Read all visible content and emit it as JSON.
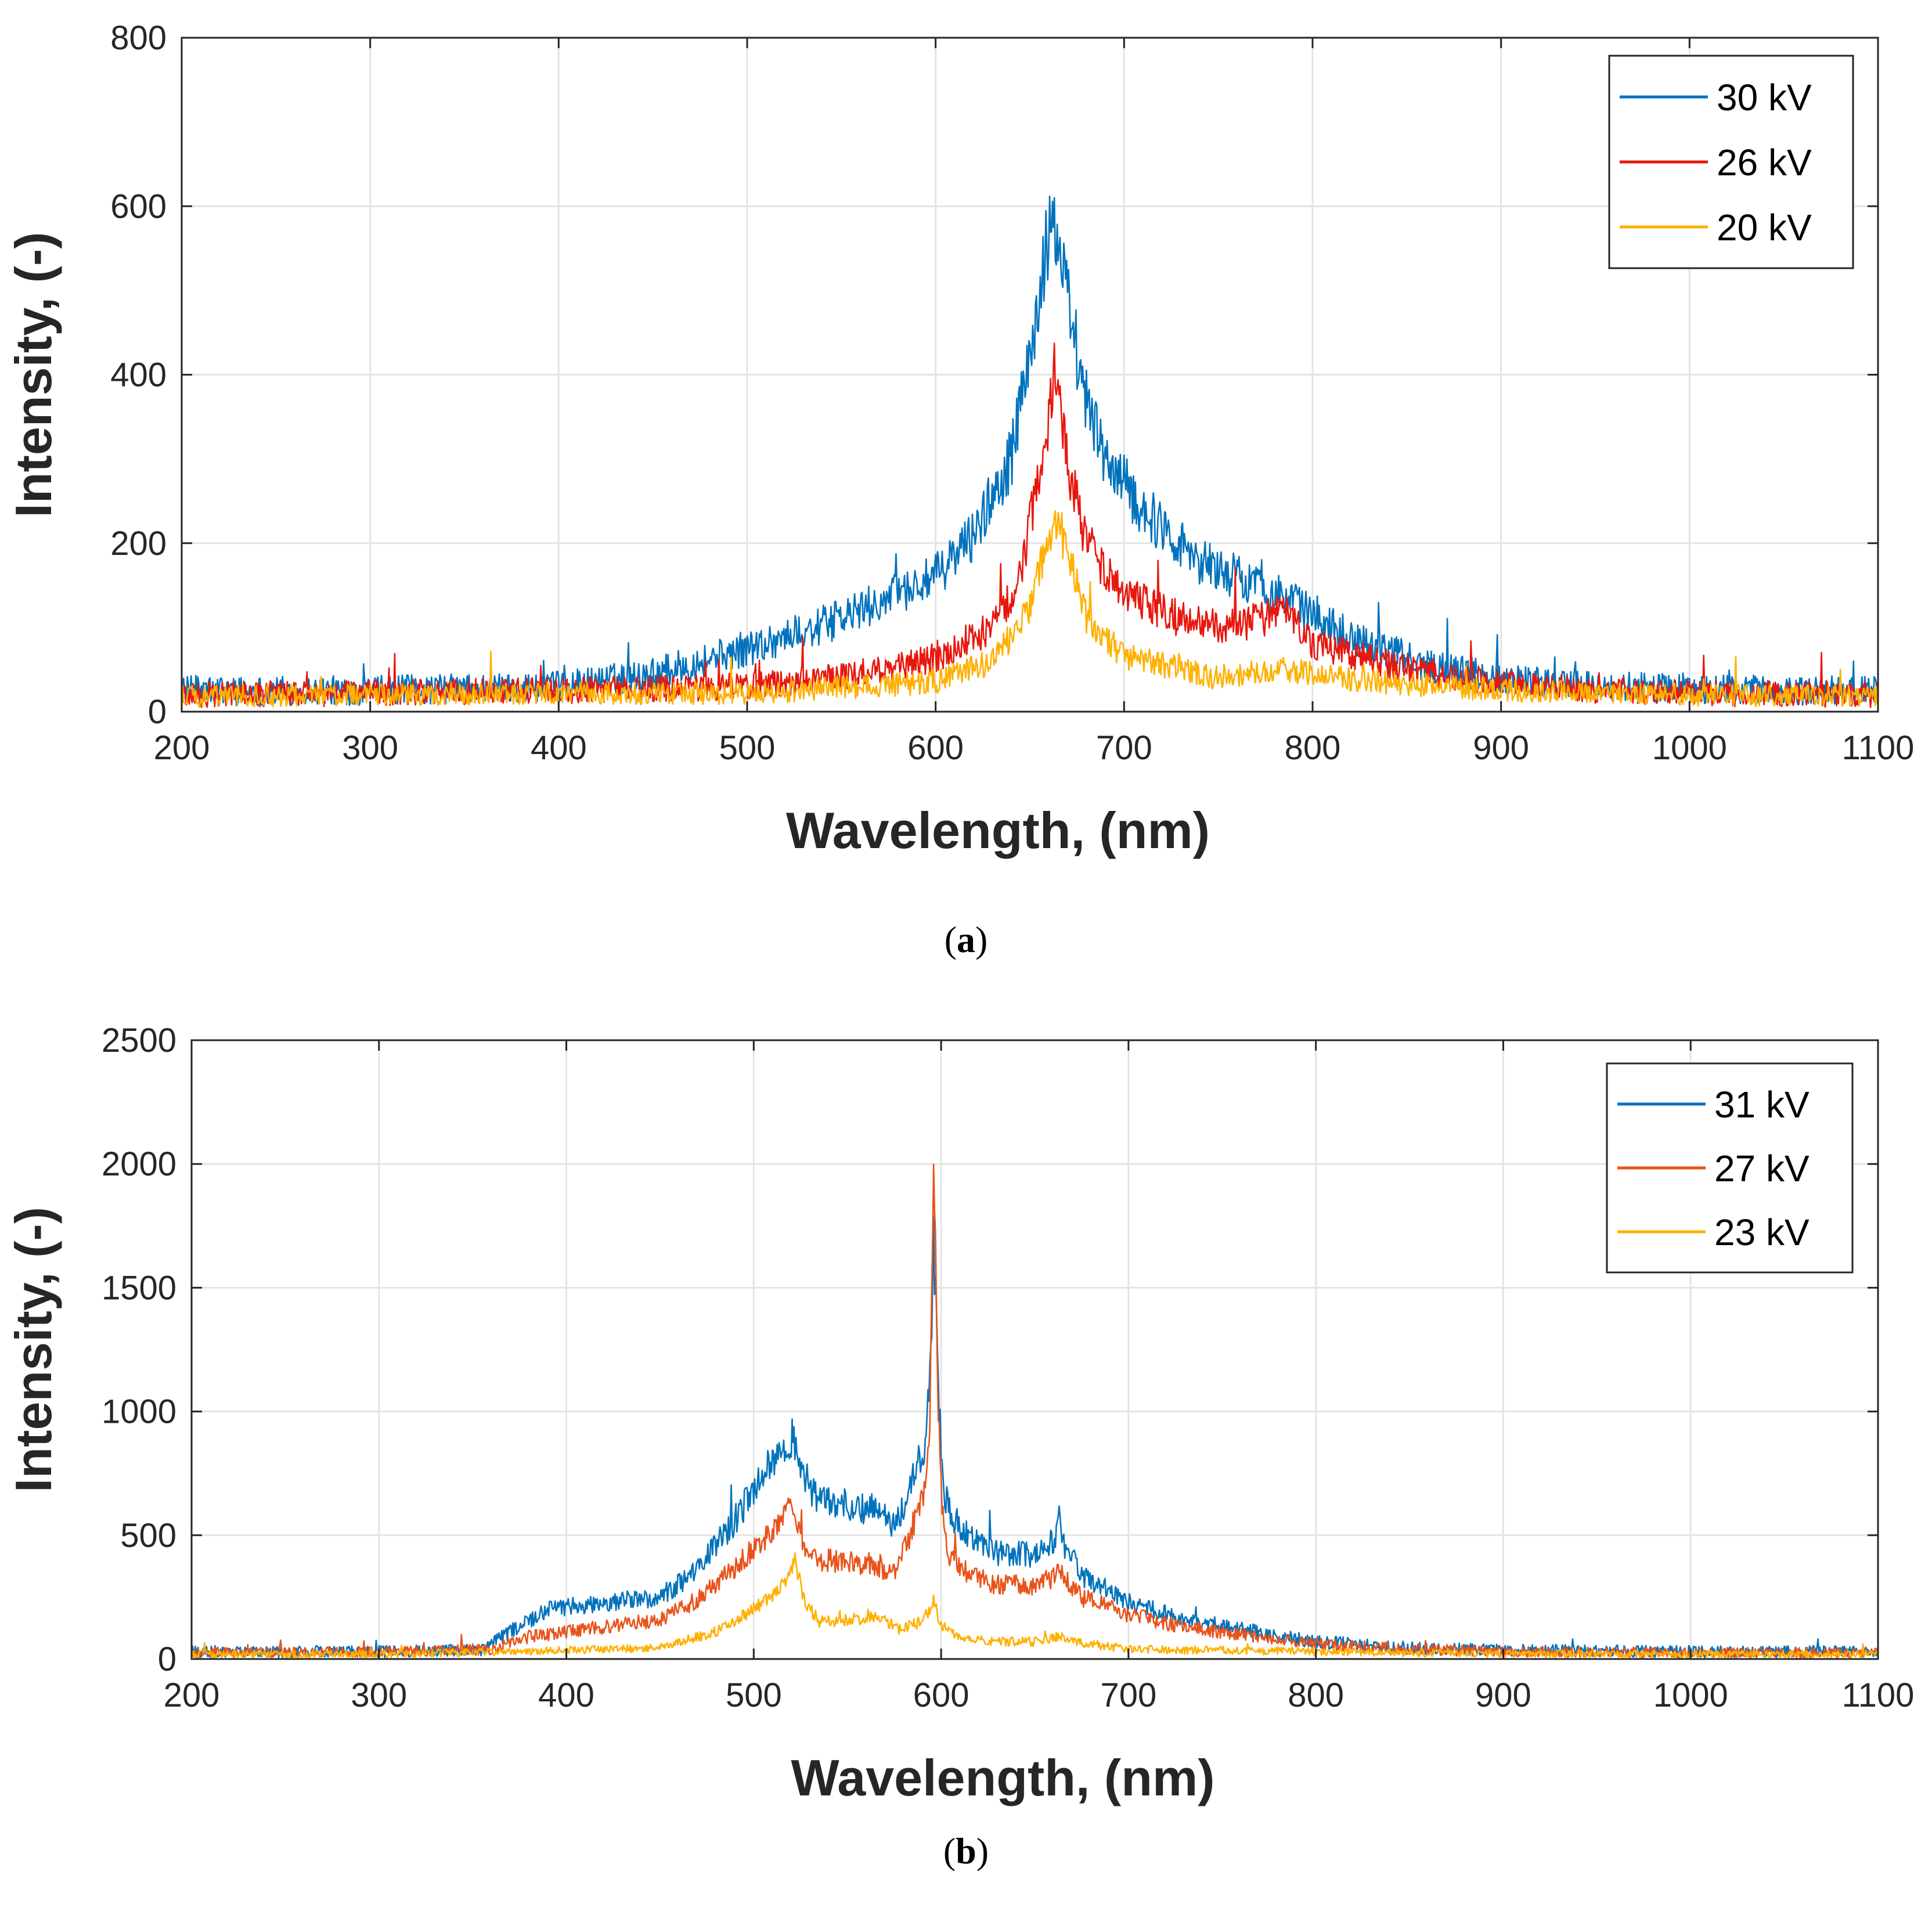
{
  "chart_data": [
    {
      "type": "line",
      "caption_letter": "a",
      "xlabel": "Wavelength, (nm)",
      "ylabel": "Intensity, (-)",
      "xlim": [
        200,
        1100
      ],
      "ylim": [
        0,
        800
      ],
      "xticks": [
        200,
        300,
        400,
        500,
        600,
        700,
        800,
        900,
        1000,
        1100
      ],
      "xtick_labels": [
        "200",
        "300",
        "400",
        "500",
        "600",
        "700",
        "800",
        "900",
        "1000",
        "1100"
      ],
      "yticks": [
        0,
        200,
        400,
        600,
        800
      ],
      "ytick_labels": [
        "0",
        "200",
        "400",
        "600",
        "800"
      ],
      "grid": true,
      "legend_position": "top-right",
      "series": [
        {
          "name": "30 kV",
          "color": "#0072BD",
          "noise": 16,
          "x": [
            200,
            300,
            400,
            450,
            500,
            550,
            600,
            620,
            640,
            650,
            658,
            663,
            668,
            675,
            690,
            710,
            740,
            770,
            790,
            820,
            860,
            900,
            950,
            1000,
            1050,
            1100
          ],
          "y": [
            25,
            25,
            30,
            45,
            75,
            110,
            160,
            210,
            300,
            420,
            540,
            580,
            520,
            400,
            300,
            240,
            180,
            150,
            130,
            90,
            55,
            40,
            30,
            28,
            25,
            25
          ]
        },
        {
          "name": "26 kV",
          "color": "#E8170E",
          "noise": 14,
          "x": [
            200,
            300,
            400,
            500,
            560,
            600,
            630,
            645,
            655,
            663,
            670,
            680,
            700,
            730,
            760,
            785,
            800,
            850,
            900,
            950,
            1000,
            1100
          ],
          "y": [
            20,
            22,
            25,
            30,
            45,
            65,
            100,
            160,
            280,
            400,
            300,
            200,
            140,
            110,
            100,
            120,
            80,
            50,
            35,
            25,
            22,
            20
          ]
        },
        {
          "name": "20 kV",
          "color": "#FFB000",
          "noise": 12,
          "x": [
            200,
            300,
            400,
            500,
            600,
            630,
            650,
            658,
            663,
            670,
            680,
            700,
            750,
            785,
            820,
            900,
            1000,
            1100
          ],
          "y": [
            18,
            20,
            22,
            22,
            35,
            60,
            120,
            190,
            235,
            190,
            110,
            65,
            40,
            50,
            38,
            25,
            20,
            18
          ]
        }
      ]
    },
    {
      "type": "line",
      "caption_letter": "b",
      "xlabel": "Wavelength, (nm)",
      "ylabel": "Intensity, (-)",
      "xlim": [
        200,
        1100
      ],
      "ylim": [
        0,
        2500
      ],
      "xticks": [
        200,
        300,
        400,
        500,
        600,
        700,
        800,
        900,
        1000,
        1100
      ],
      "xtick_labels": [
        "200",
        "300",
        "400",
        "500",
        "600",
        "700",
        "800",
        "900",
        "1000",
        "1100"
      ],
      "yticks": [
        0,
        500,
        1000,
        1500,
        2000,
        2500
      ],
      "ytick_labels": [
        "0",
        "500",
        "1000",
        "1500",
        "2000",
        "2500"
      ],
      "grid": true,
      "legend_position": "top-right",
      "series": [
        {
          "name": "31 kV",
          "color": "#0072BD",
          "noise": 22,
          "x": [
            200,
            300,
            355,
            370,
            390,
            420,
            450,
            470,
            490,
            505,
            515,
            520,
            525,
            535,
            550,
            565,
            575,
            582,
            588,
            592,
            594,
            596,
            598,
            601,
            605,
            615,
            630,
            650,
            660,
            663,
            666,
            675,
            700,
            730,
            760,
            800,
            850,
            900,
            1000,
            1100
          ],
          "y": [
            30,
            30,
            35,
            110,
            200,
            230,
            250,
            360,
            560,
            750,
            820,
            900,
            760,
            640,
            620,
            600,
            540,
            640,
            800,
            900,
            1100,
            1700,
            1200,
            700,
            580,
            500,
            430,
            420,
            480,
            560,
            460,
            340,
            230,
            160,
            120,
            70,
            45,
            35,
            30,
            30
          ]
        },
        {
          "name": "27 kV",
          "color": "#E9531B",
          "noise": 20,
          "x": [
            200,
            300,
            360,
            380,
            400,
            430,
            450,
            470,
            490,
            505,
            515,
            520,
            525,
            535,
            550,
            565,
            575,
            582,
            588,
            592,
            594,
            596,
            598,
            601,
            605,
            615,
            630,
            650,
            660,
            663,
            666,
            675,
            700,
            730,
            760,
            800,
            850,
            900,
            1000,
            1100
          ],
          "y": [
            25,
            28,
            40,
            90,
            110,
            140,
            160,
            240,
            370,
            480,
            540,
            620,
            480,
            400,
            390,
            380,
            340,
            470,
            620,
            720,
            1000,
            2100,
            1100,
            500,
            400,
            340,
            300,
            300,
            330,
            380,
            320,
            250,
            180,
            130,
            100,
            60,
            40,
            30,
            25,
            25
          ]
        },
        {
          "name": "23 kV",
          "color": "#FFB000",
          "noise": 14,
          "x": [
            200,
            300,
            400,
            450,
            480,
            500,
            510,
            518,
            522,
            526,
            535,
            550,
            565,
            578,
            590,
            596,
            600,
            610,
            630,
            650,
            663,
            670,
            700,
            750,
            800,
            850,
            900,
            1000,
            1100
          ],
          "y": [
            20,
            20,
            35,
            45,
            110,
            200,
            260,
            320,
            420,
            250,
            150,
            160,
            170,
            120,
            150,
            230,
            140,
            90,
            70,
            70,
            90,
            70,
            40,
            35,
            30,
            25,
            22,
            20,
            20
          ]
        }
      ]
    }
  ]
}
